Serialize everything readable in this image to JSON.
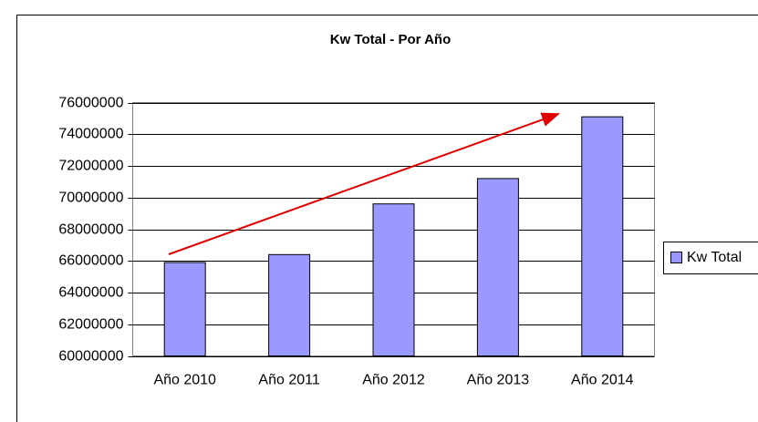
{
  "chart_data": {
    "type": "bar",
    "title": "Kw Total - Por Año",
    "categories": [
      "Año 2010",
      "Año 2011",
      "Año 2012",
      "Año 2013",
      "Año 2014"
    ],
    "series": [
      {
        "name": "Kw Total",
        "color": "#9999ff",
        "values": [
          65900000,
          66400000,
          69600000,
          71200000,
          75100000
        ]
      }
    ],
    "ylim": [
      60000000,
      76000000
    ],
    "yticks": [
      60000000,
      62000000,
      64000000,
      66000000,
      68000000,
      70000000,
      72000000,
      74000000,
      76000000
    ],
    "grid": true,
    "legend": "right"
  }
}
